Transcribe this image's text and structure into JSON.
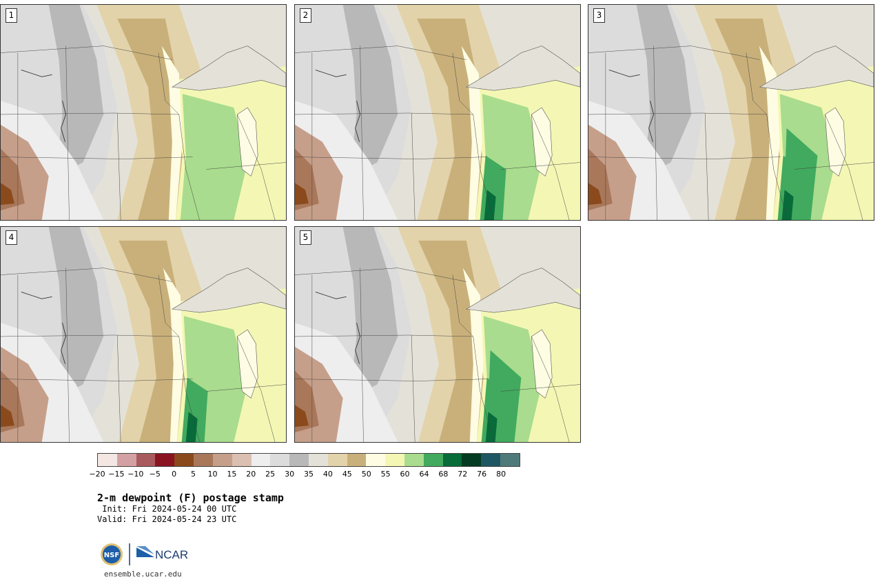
{
  "panels": [
    {
      "label": "1"
    },
    {
      "label": "2"
    },
    {
      "label": "3"
    },
    {
      "label": "4"
    },
    {
      "label": "5"
    }
  ],
  "colorbar": {
    "colors": [
      "#f3e6e3",
      "#d3a1a3",
      "#a85a5e",
      "#8a1420",
      "#8a4a1c",
      "#a9775a",
      "#c69f8a",
      "#dbbfb0",
      "#eeeeee",
      "#dcdcdc",
      "#b8b8b8",
      "#e4e2d8",
      "#e3d3aa",
      "#c9b07a",
      "#fefde3",
      "#f4f7b4",
      "#a9dc8e",
      "#41aa5e",
      "#076b3a",
      "#053b22",
      "#1f5663",
      "#4f7a7a"
    ],
    "tick_labels": [
      "−20",
      "−15",
      "−10",
      "−5",
      "0",
      "5",
      "10",
      "15",
      "20",
      "25",
      "30",
      "35",
      "40",
      "45",
      "50",
      "55",
      "60",
      "64",
      "68",
      "72",
      "76",
      "80"
    ]
  },
  "title": "2-m dewpoint (F) postage stamp",
  "init_text": " Init: Fri 2024-05-24 00 UTC",
  "valid_text": "Valid: Fri 2024-05-24 23 UTC",
  "logo": {
    "nsf": "NSF",
    "ncar": "NCAR"
  },
  "website": "ensemble.ucar.edu"
}
